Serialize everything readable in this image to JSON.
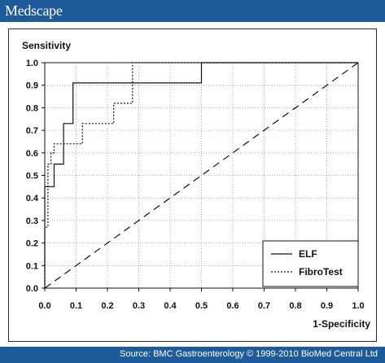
{
  "header": {
    "brand": "Medscape"
  },
  "footer": {
    "source": "Source: BMC Gastroenterology © 1999-2010 BioMed Central Ltd"
  },
  "colors": {
    "header_bg": "#1e5b9a",
    "line": "#111111"
  },
  "chart_data": {
    "type": "line",
    "title": "",
    "ylabel": "Sensitivity",
    "xlabel": "1-Specificity",
    "xlim": [
      0,
      1
    ],
    "ylim": [
      0,
      1
    ],
    "x_ticks": [
      "0.0",
      "0.1",
      "0.2",
      "0.3",
      "0.4",
      "0.5",
      "0.6",
      "0.7",
      "0.8",
      "0.9",
      "1.0"
    ],
    "y_ticks": [
      "0.0",
      "0.1",
      "0.2",
      "0.3",
      "0.4",
      "0.5",
      "0.6",
      "0.7",
      "0.8",
      "0.9",
      "1.0"
    ],
    "grid": true,
    "legend_position": "bottom-right",
    "series": [
      {
        "name": "ELF",
        "style": "solid",
        "x": [
          0.0,
          0.0,
          0.03,
          0.03,
          0.06,
          0.06,
          0.09,
          0.09,
          0.28,
          0.28,
          0.5,
          0.5,
          1.0
        ],
        "y": [
          0.0,
          0.45,
          0.45,
          0.55,
          0.55,
          0.73,
          0.73,
          0.91,
          0.91,
          0.91,
          0.91,
          1.0,
          1.0
        ]
      },
      {
        "name": "FibroTest",
        "style": "dotted",
        "x": [
          0.0,
          0.0,
          0.01,
          0.01,
          0.02,
          0.02,
          0.03,
          0.03,
          0.12,
          0.12,
          0.22,
          0.22,
          0.28,
          0.28,
          1.0
        ],
        "y": [
          0.0,
          0.27,
          0.27,
          0.55,
          0.55,
          0.6,
          0.6,
          0.64,
          0.64,
          0.73,
          0.73,
          0.82,
          0.82,
          1.0,
          1.0
        ]
      },
      {
        "name": "",
        "style": "dashed",
        "x": [
          0.0,
          1.0
        ],
        "y": [
          0.0,
          1.0
        ]
      }
    ]
  }
}
